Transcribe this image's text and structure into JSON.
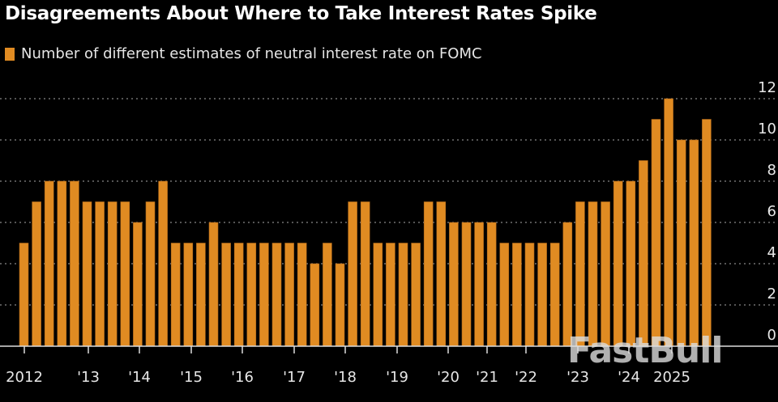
{
  "chart_data": {
    "type": "bar",
    "title": "Disagreements About Where to Take Interest Rates Spike",
    "legend": [
      "Number of different estimates of neutral interest rate on FOMC"
    ],
    "legend_placement": "top-left",
    "color": "#e08b22",
    "grid": true,
    "ylim": [
      0,
      12
    ],
    "yticks": [
      0,
      2,
      4,
      6,
      8,
      10,
      12
    ],
    "y_axis_side": "right",
    "xtick_labels": [
      "2012",
      "'13",
      "'14",
      "'15",
      "'16",
      "'17",
      "'18",
      "'19",
      "'20",
      "'21",
      "'22",
      "'23",
      "'24",
      "2025"
    ],
    "values": [
      5,
      7,
      8,
      8,
      8,
      7,
      7,
      7,
      7,
      6,
      7,
      8,
      5,
      5,
      5,
      6,
      5,
      5,
      5,
      5,
      5,
      5,
      5,
      4,
      5,
      4,
      7,
      7,
      5,
      5,
      5,
      5,
      7,
      7,
      6,
      6,
      6,
      6,
      5,
      5,
      5,
      5,
      5,
      6,
      7,
      7,
      7,
      8,
      8,
      9,
      11,
      12,
      10,
      10,
      11
    ]
  },
  "watermark": "FastBull"
}
